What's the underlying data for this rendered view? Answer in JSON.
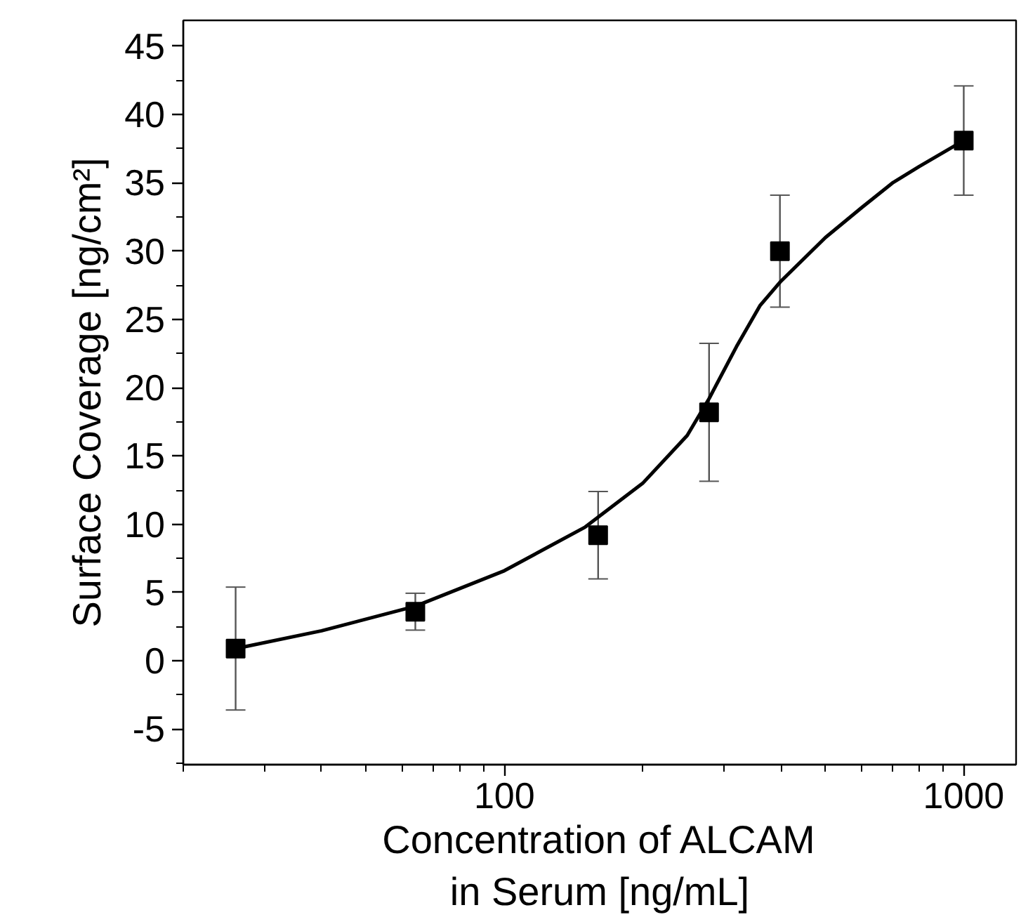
{
  "chart_data": {
    "type": "scatter",
    "xlabel": "Concentration of ALCAM\nin Serum [ng/mL]",
    "ylabel": "Surface Coverage [ng/cm²]",
    "log": "x",
    "xlim": [
      20,
      1300
    ],
    "ylim": [
      -7.6,
      46.9
    ],
    "xticks": [
      {
        "value": 20,
        "label": null
      },
      {
        "value": 30,
        "label": null
      },
      {
        "value": 40,
        "label": null
      },
      {
        "value": 50,
        "label": null
      },
      {
        "value": 60,
        "label": null
      },
      {
        "value": 70,
        "label": null
      },
      {
        "value": 80,
        "label": null
      },
      {
        "value": 90,
        "label": null
      },
      100,
      {
        "value": 200,
        "label": null
      },
      {
        "value": 300,
        "label": null
      },
      {
        "value": 400,
        "label": null
      },
      {
        "value": 500,
        "label": null
      },
      {
        "value": 600,
        "label": null
      },
      {
        "value": 700,
        "label": null
      },
      {
        "value": 800,
        "label": null
      },
      {
        "value": 900,
        "label": null
      },
      1000
    ],
    "yticks": [
      {
        "value": -7.5,
        "label": null
      },
      -5,
      {
        "value": -2.5,
        "label": null
      },
      0,
      {
        "value": 2.5,
        "label": null
      },
      5,
      {
        "value": 7.5,
        "label": null
      },
      10,
      {
        "value": 12.5,
        "label": null
      },
      15,
      {
        "value": 17.5,
        "label": null
      },
      20,
      {
        "value": 22.5,
        "label": null
      },
      25,
      {
        "value": 27.5,
        "label": null
      },
      30,
      {
        "value": 32.5,
        "label": null
      },
      35,
      {
        "value": 37.5,
        "label": null
      },
      40,
      {
        "value": 42.5,
        "label": null
      },
      45
    ],
    "grid": false,
    "marker": "square",
    "series": [
      {
        "color": "#000000",
        "x": [
          26,
          64,
          160,
          279,
          398,
          1000
        ],
        "values": [
          0.9,
          3.6,
          9.2,
          18.2,
          30.0,
          38.1
        ],
        "errors": [
          4.5,
          1.35,
          3.2,
          5.05,
          4.1,
          4.0
        ]
      },
      {
        "type": "line",
        "color": "#000000",
        "marker": "none",
        "x": [
          26,
          40,
          64,
          100,
          150,
          200,
          250,
          279,
          320,
          360,
          400,
          500,
          600,
          700,
          800,
          1000
        ],
        "values": [
          0.9,
          2.2,
          4.0,
          6.6,
          9.8,
          13.0,
          16.5,
          19.2,
          23.0,
          26.0,
          27.8,
          31.0,
          33.2,
          35.0,
          36.2,
          38.1
        ]
      }
    ]
  }
}
